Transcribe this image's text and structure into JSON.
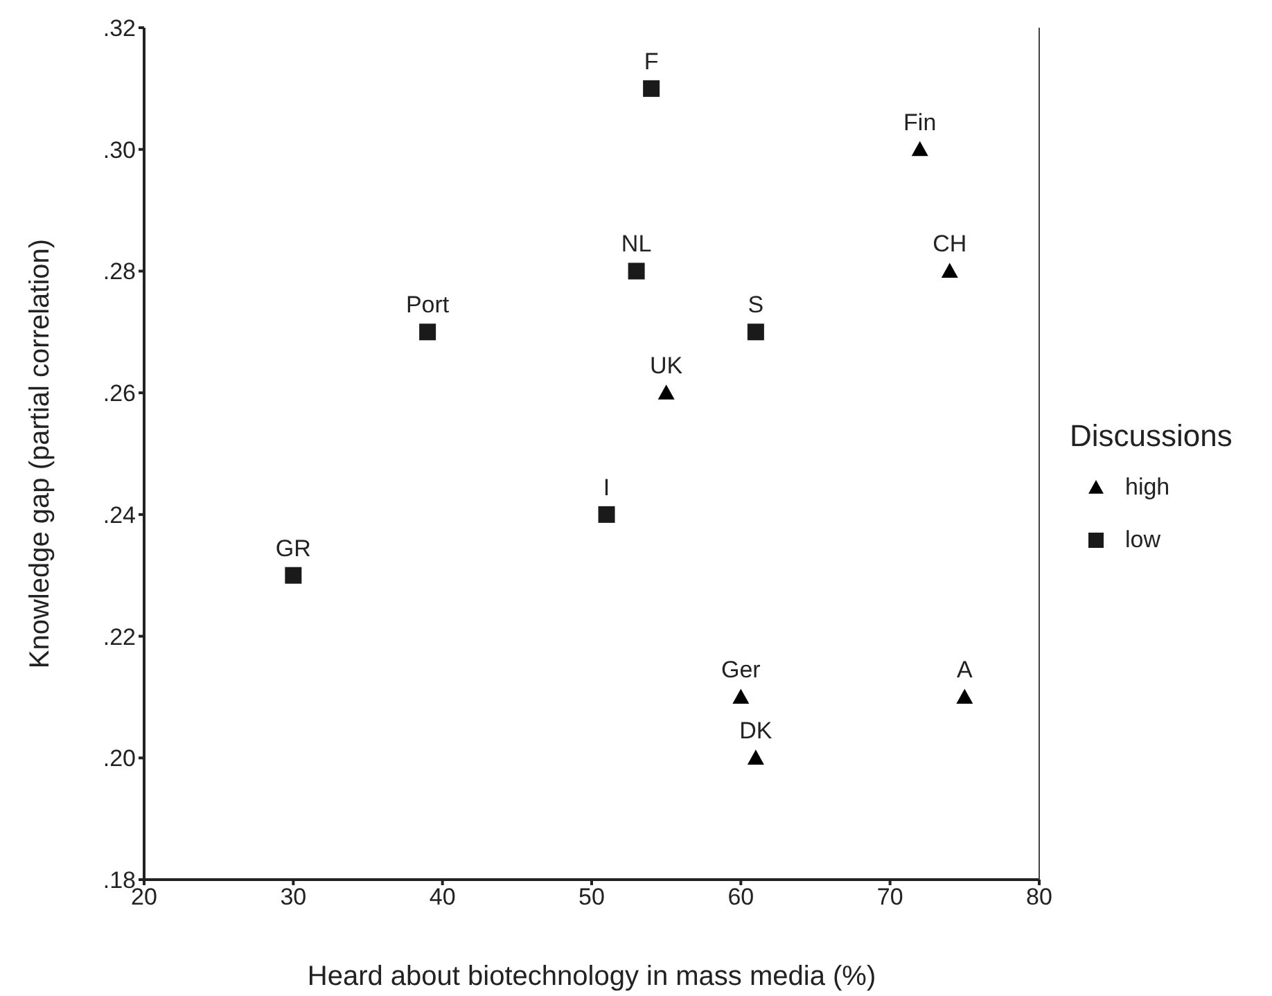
{
  "chart_data": {
    "type": "scatter",
    "xlabel": "Heard about biotechnology in mass media (%)",
    "ylabel": "Knowledge gap (partial correlation)",
    "legend_title": "Discussions",
    "legend": "right",
    "grid": false,
    "xlim": [
      20,
      80
    ],
    "xticks": [
      20,
      30,
      40,
      50,
      60,
      70,
      80
    ],
    "ylim": [
      0.18,
      0.32
    ],
    "yticks": [
      {
        "value": 0.18,
        "label": ".18"
      },
      {
        "value": 0.2,
        "label": ".20"
      },
      {
        "value": 0.22,
        "label": ".22"
      },
      {
        "value": 0.24,
        "label": ".24"
      },
      {
        "value": 0.26,
        "label": ".26"
      },
      {
        "value": 0.28,
        "label": ".28"
      },
      {
        "value": 0.3,
        "label": ".30"
      },
      {
        "value": 0.32,
        "label": ".32"
      }
    ],
    "series": [
      {
        "name": "high",
        "color": "#000000",
        "marker": "triangle",
        "x": [
          72,
          74,
          55,
          60,
          75,
          61
        ],
        "values": [
          0.3,
          0.28,
          0.26,
          0.21,
          0.21,
          0.2
        ]
      },
      {
        "name": "low",
        "color": "#1a1a1a",
        "marker": "square",
        "x": [
          54,
          53,
          39,
          61,
          51,
          30
        ],
        "values": [
          0.31,
          0.28,
          0.27,
          0.27,
          0.24,
          0.23
        ]
      }
    ],
    "annotations": [
      {
        "text": "Fin",
        "x": 72,
        "y": 0.3
      },
      {
        "text": "CH",
        "x": 74,
        "y": 0.28
      },
      {
        "text": "UK",
        "x": 55,
        "y": 0.26
      },
      {
        "text": "Ger",
        "x": 60,
        "y": 0.21
      },
      {
        "text": "A",
        "x": 75,
        "y": 0.21
      },
      {
        "text": "DK",
        "x": 61,
        "y": 0.2
      },
      {
        "text": "F",
        "x": 54,
        "y": 0.31
      },
      {
        "text": "NL",
        "x": 53,
        "y": 0.28
      },
      {
        "text": "Port",
        "x": 39,
        "y": 0.27
      },
      {
        "text": "S",
        "x": 61,
        "y": 0.27
      },
      {
        "text": "I",
        "x": 51,
        "y": 0.24
      },
      {
        "text": "GR",
        "x": 30,
        "y": 0.23
      }
    ]
  }
}
